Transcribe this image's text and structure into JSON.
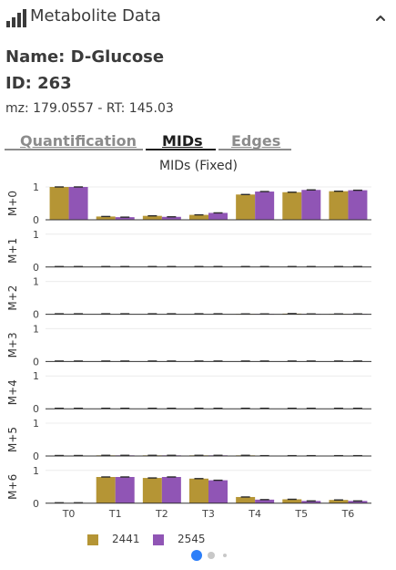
{
  "header": {
    "title": "Metabolite Data",
    "icon": "bar-chart-icon",
    "collapse_icon": "chevron-up-icon"
  },
  "metabolite": {
    "name_line": "Name: D-Glucose",
    "id_line": "ID: 263",
    "mz_rt_line": "mz: 179.0557 - RT: 145.03"
  },
  "tabs": [
    {
      "label": "Quantification",
      "active": false
    },
    {
      "label": "MIDs",
      "active": true
    },
    {
      "label": "Edges",
      "active": false
    }
  ],
  "chart_data": {
    "type": "bar",
    "title": "MIDs (Fixed)",
    "categories": [
      "T0",
      "T1",
      "T2",
      "T3",
      "T4",
      "T5",
      "T6"
    ],
    "ylim": [
      0,
      1
    ],
    "yticks": [
      0,
      1
    ],
    "error_bars": true,
    "colors": {
      "2441": "#b59535",
      "2545": "#9055b5"
    },
    "panels": [
      {
        "label": "M+0",
        "series": [
          {
            "name": "2441",
            "values": [
              1.0,
              0.1,
              0.12,
              0.15,
              0.77,
              0.84,
              0.87
            ]
          },
          {
            "name": "2545",
            "values": [
              1.0,
              0.08,
              0.09,
              0.21,
              0.86,
              0.91,
              0.9
            ]
          }
        ]
      },
      {
        "label": "M+1",
        "series": [
          {
            "name": "2441",
            "values": [
              0,
              0,
              0,
              0,
              0,
              0,
              0
            ]
          },
          {
            "name": "2545",
            "values": [
              0,
              0,
              0,
              0,
              0,
              0,
              0
            ]
          }
        ]
      },
      {
        "label": "M+2",
        "series": [
          {
            "name": "2441",
            "values": [
              0,
              0,
              0,
              0,
              0.01,
              0.02,
              0.01
            ]
          },
          {
            "name": "2545",
            "values": [
              0,
              0,
              0,
              0,
              0.01,
              0.01,
              0.01
            ]
          }
        ]
      },
      {
        "label": "M+3",
        "series": [
          {
            "name": "2441",
            "values": [
              0,
              0,
              0,
              0,
              0,
              0,
              0
            ]
          },
          {
            "name": "2545",
            "values": [
              0,
              0,
              0,
              0,
              0,
              0,
              0
            ]
          }
        ]
      },
      {
        "label": "M+4",
        "series": [
          {
            "name": "2441",
            "values": [
              0,
              0,
              0,
              0,
              0,
              0,
              0
            ]
          },
          {
            "name": "2545",
            "values": [
              0,
              0,
              0,
              0,
              0,
              0,
              0
            ]
          }
        ]
      },
      {
        "label": "M+5",
        "series": [
          {
            "name": "2441",
            "values": [
              0,
              0.02,
              0.02,
              0.02,
              0.02,
              0.01,
              0.01
            ]
          },
          {
            "name": "2545",
            "values": [
              0,
              0.02,
              0.02,
              0.02,
              0.01,
              0.01,
              0.01
            ]
          }
        ]
      },
      {
        "label": "M+6",
        "series": [
          {
            "name": "2441",
            "values": [
              0,
              0.8,
              0.77,
              0.75,
              0.19,
              0.12,
              0.1
            ]
          },
          {
            "name": "2545",
            "values": [
              0,
              0.8,
              0.8,
              0.7,
              0.11,
              0.07,
              0.07
            ]
          }
        ]
      }
    ],
    "legend": {
      "placement": "bottom-left",
      "entries": [
        "2441",
        "2545"
      ]
    }
  },
  "pagination": {
    "total_pages": 3,
    "current_page": 1
  }
}
